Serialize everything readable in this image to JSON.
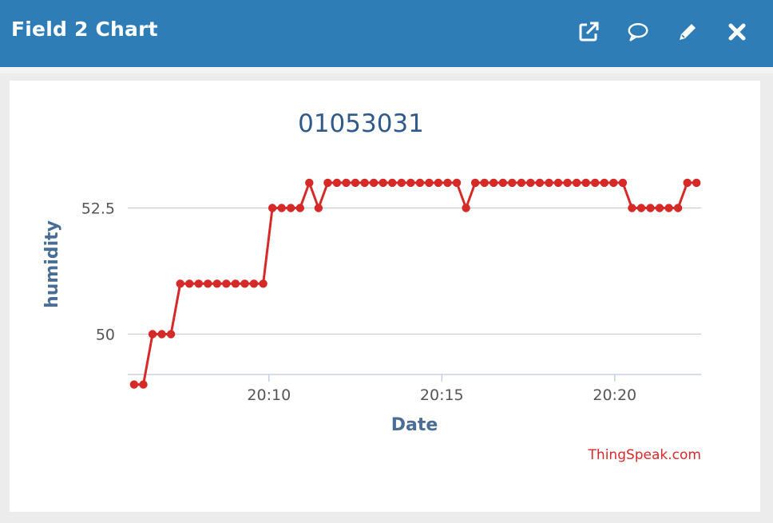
{
  "header": {
    "title": "Field 2 Chart",
    "icons": [
      "external-link-icon",
      "comment-icon",
      "pencil-icon",
      "close-icon"
    ]
  },
  "credit": "ThingSpeak.com",
  "colors": {
    "header": "#2e7db6",
    "series": "#d62a28",
    "axis_title": "#4a6d96",
    "chart_title": "#2f5a8a"
  },
  "chart_data": {
    "type": "line",
    "title": "01053031",
    "xlabel": "Date",
    "ylabel": "humidity",
    "x_unit": "time (HH:MM)",
    "xlim": [
      "20:05:55",
      "20:22:30"
    ],
    "ylim": [
      49.2,
      53.6
    ],
    "x_ticks": [
      "20:10",
      "20:15",
      "20:20"
    ],
    "y_ticks": [
      50,
      52.5
    ],
    "grid": true,
    "legend": "none",
    "series": [
      {
        "x": [
          "20:06:06",
          "20:06:22",
          "20:06:38",
          "20:06:54",
          "20:07:10",
          "20:07:26",
          "20:07:42",
          "20:07:58",
          "20:08:14",
          "20:08:30",
          "20:08:46",
          "20:09:02",
          "20:09:18",
          "20:09:34",
          "20:09:50",
          "20:10:06",
          "20:10:22",
          "20:10:38",
          "20:10:54",
          "20:11:10",
          "20:11:26",
          "20:11:42",
          "20:11:58",
          "20:12:14",
          "20:12:30",
          "20:12:46",
          "20:13:02",
          "20:13:18",
          "20:13:34",
          "20:13:50",
          "20:14:06",
          "20:14:22",
          "20:14:38",
          "20:14:54",
          "20:15:10",
          "20:15:26",
          "20:15:42",
          "20:15:58",
          "20:16:14",
          "20:16:30",
          "20:16:46",
          "20:17:02",
          "20:17:18",
          "20:17:34",
          "20:17:50",
          "20:18:06",
          "20:18:22",
          "20:18:38",
          "20:18:54",
          "20:19:10",
          "20:19:26",
          "20:19:42",
          "20:19:58",
          "20:20:14",
          "20:20:30",
          "20:20:46",
          "20:21:02",
          "20:21:18",
          "20:21:34",
          "20:21:50",
          "20:22:06",
          "20:22:22"
        ],
        "values": [
          49,
          49,
          50,
          50,
          50,
          51,
          51,
          51,
          51,
          51,
          51,
          51,
          51,
          51,
          51,
          52.5,
          52.5,
          52.5,
          52.5,
          53,
          52.5,
          53,
          53,
          53,
          53,
          53,
          53,
          53,
          53,
          53,
          53,
          53,
          53,
          53,
          53,
          53,
          52.5,
          53,
          53,
          53,
          53,
          53,
          53,
          53,
          53,
          53,
          53,
          53,
          53,
          53,
          53,
          53,
          53,
          53,
          52.5,
          52.5,
          52.5,
          52.5,
          52.5,
          52.5,
          53,
          53
        ]
      }
    ]
  }
}
